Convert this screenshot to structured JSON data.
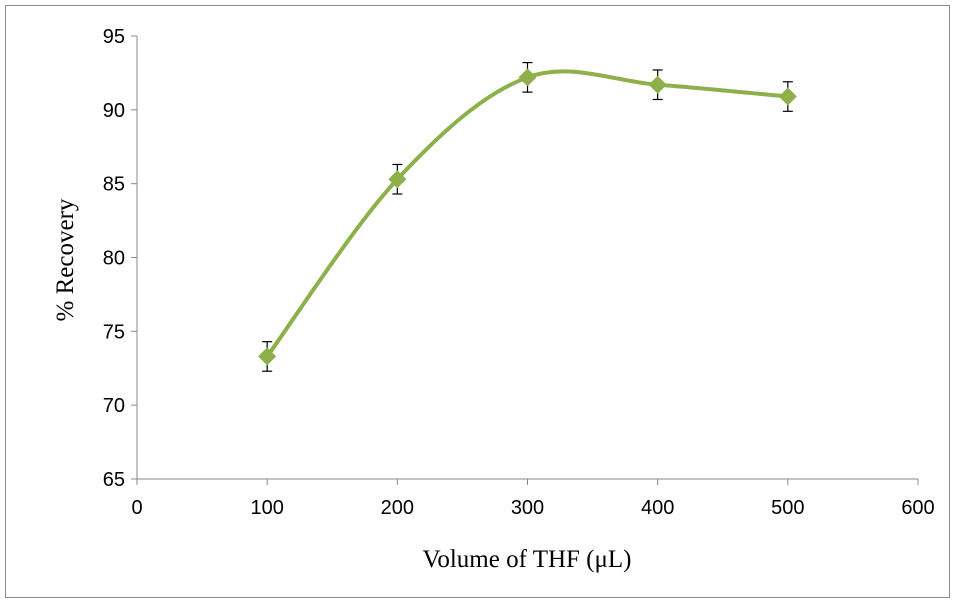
{
  "chart_data": {
    "type": "line",
    "title": "",
    "xlabel": "Volume of THF (μL)",
    "ylabel": "% Recovery",
    "xlim": [
      0,
      600
    ],
    "ylim": [
      65,
      95
    ],
    "x_ticks": [
      "0",
      "100",
      "200",
      "300",
      "400",
      "500",
      "600"
    ],
    "y_ticks": [
      "65",
      "70",
      "75",
      "80",
      "85",
      "90",
      "95"
    ],
    "grid": false,
    "legend": "none",
    "smooth": true,
    "marker": "diamond",
    "series": [
      {
        "color": "#8db04a",
        "x": [
          100,
          200,
          300,
          400,
          500
        ],
        "y": [
          73.3,
          85.3,
          92.2,
          91.7,
          90.9
        ],
        "error": [
          1.0,
          1.0,
          1.0,
          1.0,
          1.0
        ]
      }
    ]
  }
}
